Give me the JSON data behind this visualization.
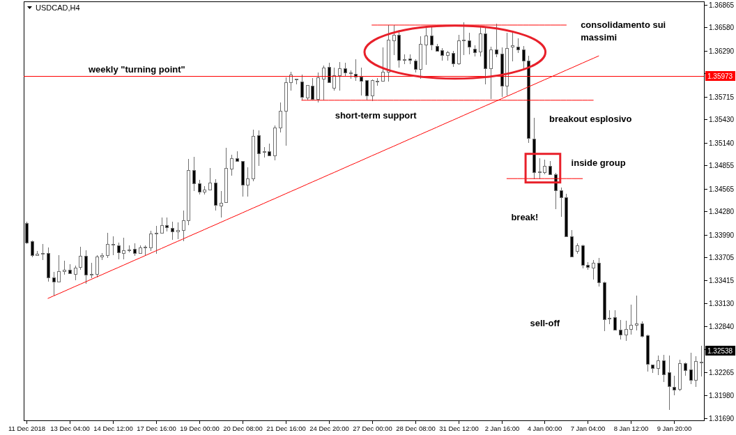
{
  "chart_data": {
    "type": "candlestick",
    "title": "USDCAD,H4",
    "categories": [
      "11 Dec 2018",
      null,
      null,
      null,
      null,
      null,
      null,
      null,
      "13 Dec 04:00",
      null,
      null,
      null,
      null,
      null,
      null,
      null,
      "14 Dec 12:00",
      null,
      null,
      null,
      null,
      null,
      null,
      null,
      "17 Dec 16:00",
      null,
      null,
      null,
      null,
      null,
      null,
      null,
      "19 Dec 00:00",
      null,
      null,
      null,
      null,
      null,
      null,
      null,
      "20 Dec 08:00",
      null,
      null,
      null,
      null,
      null,
      null,
      null,
      "21 Dec 16:00",
      null,
      null,
      null,
      null,
      null,
      null,
      null,
      "24 Dec 20:00",
      null,
      null,
      null,
      null,
      null,
      null,
      null,
      "27 Dec 00:00",
      null,
      null,
      null,
      null,
      null,
      null,
      null,
      "28 Dec 08:00",
      null,
      null,
      null,
      null,
      null,
      null,
      null,
      "31 Dec 12:00",
      null,
      null,
      null,
      null,
      null,
      null,
      null,
      "2 Jan 16:00",
      null,
      null,
      null,
      null,
      null,
      null,
      null,
      "4 Jan 00:00",
      null,
      null,
      null,
      null,
      null,
      null,
      null,
      "7 Jan 04:00",
      null,
      null,
      null,
      null,
      null,
      null,
      null,
      "8 Jan 12:00",
      null,
      null,
      null,
      null,
      null,
      null,
      null,
      "9 Jan 20:00",
      null,
      null,
      null,
      null,
      null
    ],
    "ohlc": [
      [
        1.3413,
        1.34153,
        1.33874,
        1.33894
      ],
      [
        1.33903,
        1.33918,
        1.33706,
        1.33735
      ],
      [
        1.33729,
        1.33781,
        1.3372,
        1.3375
      ],
      [
        1.33755,
        1.33874,
        1.33676,
        1.33761
      ],
      [
        1.33758,
        1.33831,
        1.33401,
        1.33453
      ],
      [
        1.3345,
        1.33526,
        1.3323,
        1.33401
      ],
      [
        1.33401,
        1.33735,
        1.33401,
        1.33532
      ],
      [
        1.33532,
        1.33665,
        1.33485,
        1.33549
      ],
      [
        1.33546,
        1.33622,
        1.33494,
        1.33506
      ],
      [
        1.33498,
        1.33604,
        1.33421,
        1.33575
      ],
      [
        1.33584,
        1.33839,
        1.33549,
        1.33724
      ],
      [
        1.33724,
        1.33793,
        1.33375,
        1.33485
      ],
      [
        1.33488,
        1.33636,
        1.33447,
        1.33494
      ],
      [
        1.33498,
        1.33735,
        1.33458,
        1.33715
      ],
      [
        1.33715,
        1.33758,
        1.33671,
        1.33735
      ],
      [
        1.33729,
        1.34014,
        1.337,
        1.33872
      ],
      [
        1.33868,
        1.33968,
        1.33729,
        1.33872
      ],
      [
        1.33854,
        1.33889,
        1.33685,
        1.33767
      ],
      [
        1.33758,
        1.33953,
        1.33685,
        1.33793
      ],
      [
        1.33807,
        1.33854,
        1.33764,
        1.33807
      ],
      [
        1.33811,
        1.33883,
        1.3372,
        1.33758
      ],
      [
        1.33758,
        1.33854,
        1.3375,
        1.33831
      ],
      [
        1.33837,
        1.33851,
        1.33724,
        1.33839
      ],
      [
        1.33831,
        1.34034,
        1.33787,
        1.34005
      ],
      [
        1.34011,
        1.34101,
        1.3375,
        1.34011
      ],
      [
        1.34011,
        1.34203,
        1.34002,
        1.34107
      ],
      [
        1.34107,
        1.34203,
        1.34025,
        1.34083
      ],
      [
        1.34077,
        1.3415,
        1.33929,
        1.34028
      ],
      [
        1.34028,
        1.34147,
        1.33937,
        1.34046
      ],
      [
        1.34046,
        1.34295,
        1.33903,
        1.3417
      ],
      [
        1.3417,
        1.34934,
        1.34107,
        1.34795
      ],
      [
        1.34795,
        1.34963,
        1.34536,
        1.34629
      ],
      [
        1.34629,
        1.34678,
        1.3449,
        1.34525
      ],
      [
        1.34525,
        1.346,
        1.3449,
        1.34556
      ],
      [
        1.34556,
        1.34824,
        1.34548,
        1.34643
      ],
      [
        1.34638,
        1.34684,
        1.34295,
        1.34359
      ],
      [
        1.34351,
        1.34533,
        1.34208,
        1.34391
      ],
      [
        1.34397,
        1.35076,
        1.34397,
        1.34821
      ],
      [
        1.34812,
        1.34992,
        1.34725,
        1.34949
      ],
      [
        1.34949,
        1.35035,
        1.34899,
        1.34911
      ],
      [
        1.34911,
        1.34911,
        1.34464,
        1.34612
      ],
      [
        1.34612,
        1.34833,
        1.34464,
        1.34696
      ],
      [
        1.34696,
        1.35303,
        1.34661,
        1.35222
      ],
      [
        1.35231,
        1.35297,
        1.34853,
        1.35007
      ],
      [
        1.35035,
        1.35085,
        1.34957,
        1.35035
      ],
      [
        1.35035,
        1.35129,
        1.34972,
        1.34978
      ],
      [
        1.34978,
        1.35356,
        1.34919,
        1.35327
      ],
      [
        1.35327,
        1.3564,
        1.35268,
        1.35536
      ],
      [
        1.35536,
        1.35956,
        1.35102,
        1.35893
      ],
      [
        1.35893,
        1.36029,
        1.35791,
        1.35988
      ],
      [
        1.35936,
        1.35942,
        1.35872,
        1.35936
      ],
      [
        1.35907,
        1.35988,
        1.35666,
        1.3571
      ],
      [
        1.35704,
        1.35863,
        1.35666,
        1.35858
      ],
      [
        1.35849,
        1.3595,
        1.35666,
        1.35684
      ],
      [
        1.35684,
        1.36017,
        1.35645,
        1.35956
      ],
      [
        1.35942,
        1.36102,
        1.35666,
        1.36081
      ],
      [
        1.3609,
        1.36139,
        1.35893,
        1.35893
      ],
      [
        1.35828,
        1.36081,
        1.35791,
        1.3598
      ],
      [
        1.3598,
        1.36145,
        1.35791,
        1.36067
      ],
      [
        1.36067,
        1.36139,
        1.35974,
        1.36015
      ],
      [
        1.36015,
        1.36044,
        1.35942,
        1.36015
      ],
      [
        1.36003,
        1.36183,
        1.35913,
        1.35965
      ],
      [
        1.35965,
        1.36076,
        1.35732,
        1.35915
      ],
      [
        1.35921,
        1.35921,
        1.35666,
        1.35732
      ],
      [
        1.35727,
        1.35928,
        1.3566,
        1.35921
      ],
      [
        1.35915,
        1.35945,
        1.35854,
        1.35915
      ],
      [
        1.35915,
        1.36328,
        1.35915,
        1.36023
      ],
      [
        1.36023,
        1.3661,
        1.35902,
        1.36424
      ],
      [
        1.36416,
        1.3661,
        1.36235,
        1.36488
      ],
      [
        1.36488,
        1.36546,
        1.36081,
        1.36177
      ],
      [
        1.36186,
        1.36241,
        1.36124,
        1.36186
      ],
      [
        1.36189,
        1.36241,
        1.36124,
        1.36172
      ],
      [
        1.36163,
        1.36183,
        1.36017,
        1.36058
      ],
      [
        1.36058,
        1.36473,
        1.35942,
        1.36372
      ],
      [
        1.36363,
        1.36604,
        1.3611,
        1.36482
      ],
      [
        1.36482,
        1.36604,
        1.36294,
        1.36363
      ],
      [
        1.36348,
        1.36377,
        1.36279,
        1.36285
      ],
      [
        1.36294,
        1.36322,
        1.36163,
        1.36235
      ],
      [
        1.36235,
        1.36285,
        1.36163,
        1.3627
      ],
      [
        1.36264,
        1.36285,
        1.36087,
        1.36131
      ],
      [
        1.36131,
        1.36488,
        1.3611,
        1.36421
      ],
      [
        1.36416,
        1.36647,
        1.36235,
        1.36429
      ],
      [
        1.36421,
        1.36517,
        1.36241,
        1.36342
      ],
      [
        1.36311,
        1.36357,
        1.3622,
        1.3627
      ],
      [
        1.36279,
        1.36581,
        1.3622,
        1.36508
      ],
      [
        1.36508,
        1.36581,
        1.35872,
        1.36067
      ],
      [
        1.36067,
        1.36342,
        1.35689,
        1.36307
      ],
      [
        1.36307,
        1.36625,
        1.36212,
        1.3625
      ],
      [
        1.3625,
        1.36328,
        1.3571,
        1.35854
      ],
      [
        1.35854,
        1.36517,
        1.35727,
        1.3632
      ],
      [
        1.36337,
        1.3654,
        1.36154,
        1.36355
      ],
      [
        1.36337,
        1.36444,
        1.36261,
        1.36305
      ],
      [
        1.36305,
        1.36348,
        1.36067,
        1.36163
      ],
      [
        1.36163,
        1.36226,
        1.35138,
        1.35196
      ],
      [
        1.35187,
        1.35448,
        1.34687,
        1.34774
      ],
      [
        1.34783,
        1.34949,
        1.34687,
        1.34783
      ],
      [
        1.34774,
        1.34926,
        1.34745,
        1.34853
      ],
      [
        1.34853,
        1.34911,
        1.34737,
        1.34745
      ],
      [
        1.34745,
        1.3476,
        1.3431,
        1.34542
      ],
      [
        1.34542,
        1.34577,
        1.34216,
        1.34455
      ],
      [
        1.34455,
        1.34499,
        1.3397,
        1.3397
      ],
      [
        1.33968,
        1.34049,
        1.33715,
        1.33715
      ],
      [
        1.33781,
        1.33883,
        1.33752,
        1.33854
      ],
      [
        1.33859,
        1.33868,
        1.33569,
        1.33613
      ],
      [
        1.33613,
        1.33648,
        1.33546,
        1.33584
      ],
      [
        1.33575,
        1.33676,
        1.33432,
        1.33636
      ],
      [
        1.33636,
        1.337,
        1.33345,
        1.33395
      ],
      [
        1.33392,
        1.33404,
        1.32779,
        1.32931
      ],
      [
        1.32945,
        1.33047,
        1.32866,
        1.32945
      ],
      [
        1.32957,
        1.33041,
        1.328,
        1.328
      ],
      [
        1.328,
        1.32925,
        1.32675,
        1.32742
      ],
      [
        1.32739,
        1.32916,
        1.32663,
        1.32809
      ],
      [
        1.32809,
        1.3311,
        1.32742,
        1.32864
      ],
      [
        1.32864,
        1.3323,
        1.32791,
        1.32881
      ],
      [
        1.32878,
        1.32901,
        1.32704,
        1.32721
      ],
      [
        1.32733,
        1.32742,
        1.32277,
        1.32373
      ],
      [
        1.32364,
        1.32364,
        1.32256,
        1.32321
      ],
      [
        1.32321,
        1.3248,
        1.32234,
        1.32416
      ],
      [
        1.32416,
        1.32486,
        1.32147,
        1.32246
      ],
      [
        1.32269,
        1.3248,
        1.31798,
        1.32094
      ],
      [
        1.32082,
        1.32228,
        1.31978,
        1.32053
      ],
      [
        1.32059,
        1.32428,
        1.3203,
        1.32384
      ],
      [
        1.32384,
        1.32393,
        1.32228,
        1.32297
      ],
      [
        1.32306,
        1.32509,
        1.32123,
        1.32169
      ],
      [
        1.32169,
        1.32465,
        1.32088,
        1.32408
      ],
      [
        1.32402,
        1.32596,
        1.32213,
        1.32402
      ]
    ],
    "colors": [
      "#000000",
      "#000000",
      "#ffffff",
      "#6e6e6e",
      "#000000",
      "#000000",
      "#ffffff",
      "#ffffff",
      "#000000",
      "#ffffff",
      "#ffffff",
      "#000000",
      "#6e6e6e",
      "#ffffff",
      "#ffffff",
      "#ffffff",
      "#6e6e6e",
      "#000000",
      "#ffffff",
      "#6e6e6e",
      "#000000",
      "#ffffff",
      "#6e6e6e",
      "#ffffff",
      "#6e6e6e",
      "#ffffff",
      "#000000",
      "#000000",
      "#ffffff",
      "#ffffff",
      "#ffffff",
      "#000000",
      "#000000",
      "#ffffff",
      "#ffffff",
      "#000000",
      "#ffffff",
      "#ffffff",
      "#ffffff",
      "#000000",
      "#000000",
      "#ffffff",
      "#ffffff",
      "#000000",
      "#6e6e6e",
      "#000000",
      "#ffffff",
      "#ffffff",
      "#ffffff",
      "#ffffff",
      "#6e6e6e",
      "#000000",
      "#ffffff",
      "#000000",
      "#ffffff",
      "#ffffff",
      "#000000",
      "#ffffff",
      "#ffffff",
      "#000000",
      "#6e6e6e",
      "#000000",
      "#000000",
      "#000000",
      "#ffffff",
      "#6e6e6e",
      "#ffffff",
      "#ffffff",
      "#ffffff",
      "#000000",
      "#6e6e6e",
      "#000000",
      "#000000",
      "#ffffff",
      "#ffffff",
      "#000000",
      "#000000",
      "#000000",
      "#ffffff",
      "#000000",
      "#ffffff",
      "#ffffff",
      "#000000",
      "#000000",
      "#ffffff",
      "#000000",
      "#ffffff",
      "#000000",
      "#000000",
      "#ffffff",
      "#ffffff",
      "#000000",
      "#000000",
      "#000000",
      "#000000",
      "#6e6e6e",
      "#ffffff",
      "#000000",
      "#000000",
      "#000000",
      "#000000",
      "#000000",
      "#ffffff",
      "#000000",
      "#000000",
      "#ffffff",
      "#000000",
      "#000000",
      "#6e6e6e",
      "#000000",
      "#000000",
      "#ffffff",
      "#ffffff",
      "#ffffff",
      "#000000",
      "#000000",
      "#000000",
      "#ffffff",
      "#000000",
      "#000000",
      "#000000",
      "#ffffff",
      "#000000",
      "#000000",
      "#ffffff",
      "#6e6e6e"
    ],
    "color": "#6e6e6e",
    "ylim": [
      1.31667,
      1.36906
    ],
    "yticks": [
      1.36865,
      {
        "value": 1.3658,
        "label": "1.36580"
      },
      {
        "value": 1.3629,
        "label": "1.36290"
      },
      {
        "value": 1.36005,
        "label": null
      },
      1.35715,
      {
        "value": 1.3543,
        "label": "1.35430"
      },
      {
        "value": 1.3514,
        "label": "1.35140"
      },
      1.34855,
      1.34565,
      {
        "value": 1.3428,
        "label": "1.34280"
      },
      {
        "value": 1.3399,
        "label": "1.33990"
      },
      1.33705,
      1.33415,
      {
        "value": 1.3313,
        "label": "1.33130"
      },
      {
        "value": 1.3284,
        "label": "1.32840"
      },
      {
        "value": 1.32555,
        "label": null
      },
      1.32265,
      {
        "value": 1.3198,
        "label": "1.31980"
      },
      {
        "value": 1.3169,
        "label": "1.31690"
      }
    ],
    "series": [
      {
        "type": "line",
        "color": "#ff0000",
        "values": [
          null,
          null,
          null,
          null,
          1.33192,
          1.33222,
          1.33251,
          1.33281,
          1.33311,
          1.33341,
          1.3337,
          1.334,
          1.3343,
          1.3346,
          1.33489,
          1.33519,
          1.33549,
          1.33578,
          1.33608,
          1.33638,
          1.33668,
          1.33697,
          1.33727,
          1.33757,
          1.33787,
          1.33816,
          1.33846,
          1.33876,
          1.33905,
          1.33935,
          1.33965,
          1.33995,
          1.34024,
          1.34054,
          1.34084,
          1.34113,
          1.34143,
          1.34173,
          1.34203,
          1.34232,
          1.34262,
          1.34292,
          1.34322,
          1.34351,
          1.34381,
          1.34411,
          1.3444,
          1.3447,
          1.345,
          1.3453,
          1.34559,
          1.34589,
          1.34619,
          1.34649,
          1.34678,
          1.34708,
          1.34738,
          1.34767,
          1.34797,
          1.34827,
          1.34857,
          1.34886,
          1.34916,
          1.34946,
          1.34976,
          1.35005,
          1.35035,
          1.35065,
          1.35094,
          1.35124,
          1.35154,
          1.35184,
          1.35213,
          1.35243,
          1.35273,
          1.35302,
          1.35332,
          1.35362,
          1.35392,
          1.35421,
          1.35451,
          1.35481,
          1.35511,
          1.3554,
          1.3557,
          1.356,
          1.35629,
          1.35659,
          1.35689,
          1.35719,
          1.35748,
          1.35778,
          1.35808,
          1.35838,
          1.35867,
          1.35897,
          1.35927,
          1.35956,
          1.35986,
          1.36016,
          1.36046,
          1.36075,
          1.36105,
          1.36135,
          1.36165,
          1.36194,
          1.36224,
          null,
          null,
          null,
          null,
          null,
          null,
          null,
          null,
          null,
          null,
          null,
          null,
          null,
          null,
          null,
          null,
          null,
          null,
          null
        ]
      },
      {
        "type": "line",
        "color": "#ff0000",
        "values": [
          null,
          null,
          null,
          null,
          null,
          null,
          null,
          null,
          null,
          null,
          null,
          null,
          null,
          null,
          null,
          null,
          null,
          null,
          null,
          null,
          null,
          null,
          null,
          null,
          null,
          null,
          null,
          null,
          null,
          null,
          null,
          null,
          null,
          null,
          null,
          null,
          null,
          null,
          null,
          null,
          null,
          null,
          null,
          null,
          null,
          null,
          null,
          null,
          null,
          null,
          null,
          null,
          null,
          null,
          null,
          null,
          null,
          null,
          null,
          null,
          null,
          null,
          null,
          null,
          1.3661,
          1.3661,
          1.3661,
          1.3661,
          1.3661,
          1.3661,
          1.3661,
          1.3661,
          1.3661,
          1.3661,
          1.3661,
          1.3661,
          1.3661,
          1.3661,
          1.3661,
          1.3661,
          1.3661,
          1.3661,
          1.3661,
          1.3661,
          1.3661,
          1.3661,
          1.3661,
          1.3661,
          1.3661,
          1.3661,
          1.3661,
          1.3661,
          1.3661,
          1.3661,
          1.3661,
          1.3661,
          1.3661,
          1.3661,
          1.3661,
          1.3661,
          1.3661,
          null,
          null,
          null,
          null,
          null,
          null,
          null,
          null,
          null,
          null,
          null,
          null,
          null,
          null,
          null,
          null,
          null,
          null,
          null,
          null,
          null,
          null,
          null,
          null,
          null
        ]
      },
      {
        "type": "line",
        "color": "#ff0000",
        "values": [
          null,
          null,
          null,
          null,
          null,
          null,
          null,
          null,
          null,
          null,
          null,
          null,
          null,
          null,
          null,
          null,
          null,
          null,
          null,
          null,
          null,
          null,
          null,
          null,
          null,
          null,
          null,
          null,
          null,
          null,
          null,
          null,
          null,
          null,
          null,
          null,
          null,
          null,
          null,
          null,
          null,
          null,
          null,
          null,
          null,
          null,
          null,
          null,
          null,
          null,
          null,
          1.3567,
          1.3567,
          1.3567,
          1.3567,
          1.3567,
          1.3567,
          1.3567,
          1.3567,
          1.3567,
          1.3567,
          1.3567,
          1.3567,
          1.3567,
          1.3567,
          1.3567,
          1.3567,
          1.3567,
          1.3567,
          1.3567,
          1.3567,
          1.3567,
          1.3567,
          1.3567,
          1.3567,
          1.3567,
          1.3567,
          1.3567,
          1.3567,
          1.3567,
          1.3567,
          1.3567,
          1.3567,
          1.3567,
          1.3567,
          1.3567,
          1.3567,
          1.3567,
          1.3567,
          1.3567,
          1.3567,
          1.3567,
          1.3567,
          1.3567,
          1.3567,
          1.3567,
          1.3567,
          1.3567,
          1.3567,
          1.3567,
          1.3567,
          1.3567,
          1.3567,
          1.3567,
          1.3567,
          1.3567,
          null,
          null,
          null,
          null,
          null,
          null,
          null,
          null,
          null,
          null,
          null,
          null,
          null,
          null,
          null,
          null,
          null,
          null,
          null,
          null
        ]
      },
      {
        "type": "line",
        "color": "#ff0000",
        "values": [
          null,
          null,
          null,
          null,
          null,
          null,
          null,
          null,
          null,
          null,
          null,
          null,
          null,
          null,
          null,
          null,
          null,
          null,
          null,
          null,
          null,
          null,
          null,
          null,
          null,
          null,
          null,
          null,
          null,
          null,
          null,
          null,
          null,
          null,
          null,
          null,
          null,
          null,
          null,
          null,
          null,
          null,
          null,
          null,
          null,
          null,
          null,
          null,
          null,
          null,
          null,
          null,
          null,
          null,
          null,
          null,
          null,
          null,
          null,
          null,
          null,
          null,
          null,
          null,
          null,
          null,
          null,
          null,
          null,
          null,
          null,
          null,
          null,
          null,
          null,
          null,
          null,
          null,
          null,
          null,
          null,
          null,
          null,
          null,
          null,
          null,
          null,
          null,
          null,
          1.3469,
          1.3469,
          1.3469,
          1.3469,
          1.3469,
          1.3469,
          1.3469,
          1.3469,
          1.3469,
          1.3469,
          1.3469,
          1.3469,
          1.3469,
          1.3469,
          1.3469,
          null,
          null,
          null,
          null,
          null,
          null,
          null,
          null,
          null,
          null,
          null,
          null,
          null,
          null,
          null,
          null,
          null,
          null,
          null,
          null,
          null,
          null
        ]
      }
    ],
    "ref_lines": [
      {
        "axis": "y",
        "value": 1.35973,
        "label": "weekly \"turning point\"",
        "color": "#ff0000"
      }
    ],
    "annotations": [
      "consolidamento sui massimi",
      "short-term support",
      "breakout esplosivo",
      "inside group",
      "break!",
      "sell-off",
      {
        "text": "1.35973",
        "y": 1.35973
      },
      {
        "text": "1.32538",
        "y": 1.32538
      }
    ]
  }
}
